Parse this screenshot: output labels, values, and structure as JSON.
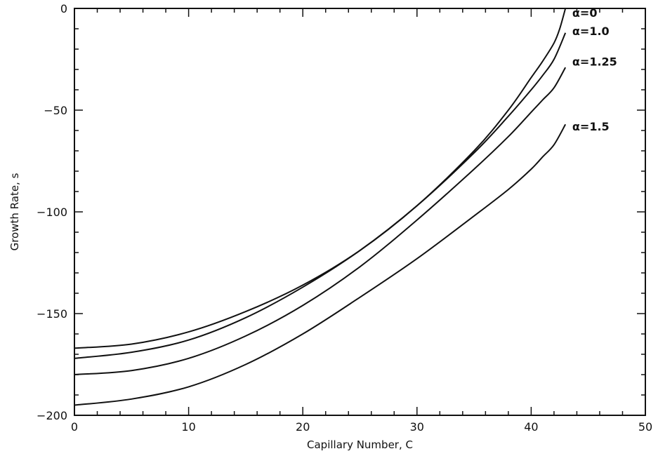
{
  "chart_data": {
    "type": "line",
    "xlabel": "Capillary Number, C",
    "ylabel": "Growth Rate, s",
    "xlim": [
      0,
      50
    ],
    "ylim": [
      -200,
      0
    ],
    "xticks": [
      0,
      10,
      20,
      30,
      40,
      50
    ],
    "yticks": [
      0,
      -50,
      -100,
      -150,
      -200
    ],
    "xtick_labels": [
      "0",
      "10",
      "20",
      "30",
      "40",
      "50"
    ],
    "ytick_labels": [
      "0",
      "−50",
      "−100",
      "−150",
      "−200"
    ],
    "x_minor_step": 2,
    "y_minor_step": 10,
    "grid": false,
    "series": [
      {
        "name": "α=0",
        "x": [
          0,
          5,
          10,
          15,
          20,
          25,
          30,
          35,
          38,
          40,
          41,
          42,
          42.5,
          43
        ],
        "y": [
          -167,
          -165,
          -159,
          -149,
          -136,
          -119,
          -97,
          -70,
          -50,
          -34,
          -26,
          -17,
          -10,
          0
        ]
      },
      {
        "name": "α=1.0",
        "x": [
          0,
          5,
          10,
          15,
          20,
          25,
          30,
          35,
          38,
          40,
          41,
          42,
          43
        ],
        "y": [
          -172,
          -169,
          -163,
          -152,
          -137,
          -119,
          -97,
          -71,
          -53,
          -40,
          -33,
          -25,
          -12
        ]
      },
      {
        "name": "α=1.25",
        "x": [
          0,
          5,
          10,
          15,
          20,
          25,
          30,
          35,
          38,
          40,
          41,
          42,
          43
        ],
        "y": [
          -180,
          -178,
          -172,
          -161,
          -146,
          -127,
          -104,
          -79,
          -63,
          -51,
          -45,
          -39,
          -29
        ]
      },
      {
        "name": "α=1.5",
        "x": [
          0,
          5,
          10,
          15,
          20,
          25,
          30,
          35,
          38,
          40,
          41,
          42,
          43
        ],
        "y": [
          -195,
          -192,
          -186,
          -175,
          -160,
          -142,
          -123,
          -102,
          -89,
          -79,
          -73,
          -67,
          -57
        ]
      }
    ],
    "labels": [
      {
        "text": "α=0",
        "x": 43.6,
        "y": -2
      },
      {
        "text": "α=1.0",
        "x": 43.6,
        "y": -11
      },
      {
        "text": "α=1.25",
        "x": 43.6,
        "y": -26
      },
      {
        "text": "α=1.5",
        "x": 43.6,
        "y": -58
      }
    ]
  }
}
